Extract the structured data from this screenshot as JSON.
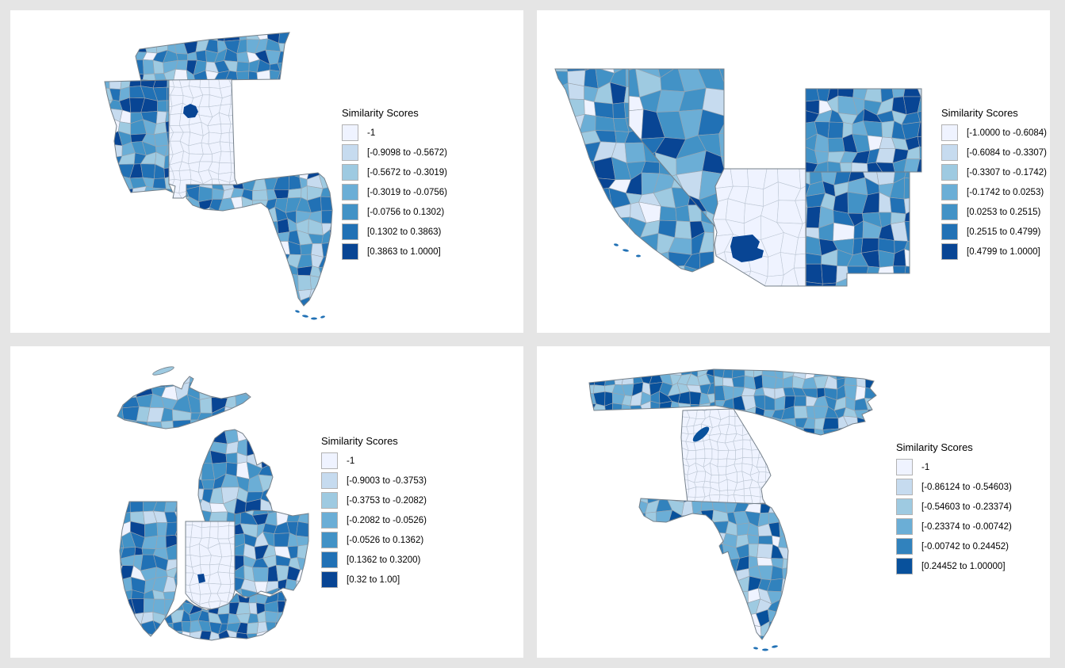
{
  "background_color": "#E5E5E5",
  "panel_color": "#FFFFFF",
  "county_line_color": "#99a3ad",
  "state_line_color": "#75808a",
  "panels": [
    {
      "position": "top-left",
      "states": [
        "Tennessee",
        "Mississippi",
        "Alabama",
        "Florida"
      ],
      "focal_state": "Alabama",
      "legend": {
        "title": "Similarity Scores",
        "items": [
          "-1",
          "[-0.9098 to -0.5672)",
          "[-0.5672 to -0.3019)",
          "[-0.3019 to -0.0756)",
          "[-0.0756 to 0.1302)",
          "[0.1302 to 0.3863)",
          "[0.3863 to 1.0000]"
        ]
      },
      "palette": [
        "#EFF3FF",
        "#C6DBEF",
        "#9ECAE1",
        "#6BAED6",
        "#4292C6",
        "#2171B5",
        "#084594"
      ]
    },
    {
      "position": "top-right",
      "states": [
        "California",
        "Nevada",
        "Arizona",
        "Colorado",
        "New Mexico"
      ],
      "focal_state": "Arizona",
      "legend": {
        "title": "Similarity Scores",
        "items": [
          "[-1.0000 to -0.6084)",
          "[-0.6084 to -0.3307)",
          "[-0.3307 to -0.1742)",
          "[-0.1742 to 0.0253)",
          "[0.0253 to 0.2515)",
          "[0.2515 to 0.4799)",
          "[0.4799 to 1.0000]"
        ]
      },
      "palette": [
        "#EFF3FF",
        "#C6DBEF",
        "#9ECAE1",
        "#6BAED6",
        "#4292C6",
        "#2171B5",
        "#084594"
      ]
    },
    {
      "position": "bottom-left",
      "states": [
        "Michigan",
        "Illinois",
        "Indiana",
        "Ohio",
        "Kentucky"
      ],
      "focal_state": "Indiana",
      "legend": {
        "title": "Similarity Scores",
        "items": [
          "-1",
          "[-0.9003 to -0.3753)",
          "[-0.3753 to -0.2082)",
          "[-0.2082 to -0.0526)",
          "[-0.0526 to 0.1362)",
          "[0.1362 to 0.3200)",
          "[0.32 to 1.00]"
        ]
      },
      "palette": [
        "#EFF3FF",
        "#C6DBEF",
        "#9ECAE1",
        "#6BAED6",
        "#4292C6",
        "#2171B5",
        "#084594"
      ]
    },
    {
      "position": "bottom-right",
      "states": [
        "Tennessee",
        "North Carolina",
        "Georgia",
        "Florida"
      ],
      "focal_state": "Georgia",
      "legend": {
        "title": "Similarity Scores",
        "items": [
          "-1",
          "[-0.86124 to -0.54603)",
          "[-0.54603 to -0.23374)",
          "[-0.23374 to -0.00742)",
          "[-0.00742 to 0.24452)",
          "[0.24452 to 1.00000]"
        ]
      },
      "palette": [
        "#EFF3FF",
        "#C6DBEF",
        "#9ECAE1",
        "#6BAED6",
        "#3182BD",
        "#08519C"
      ]
    }
  ]
}
